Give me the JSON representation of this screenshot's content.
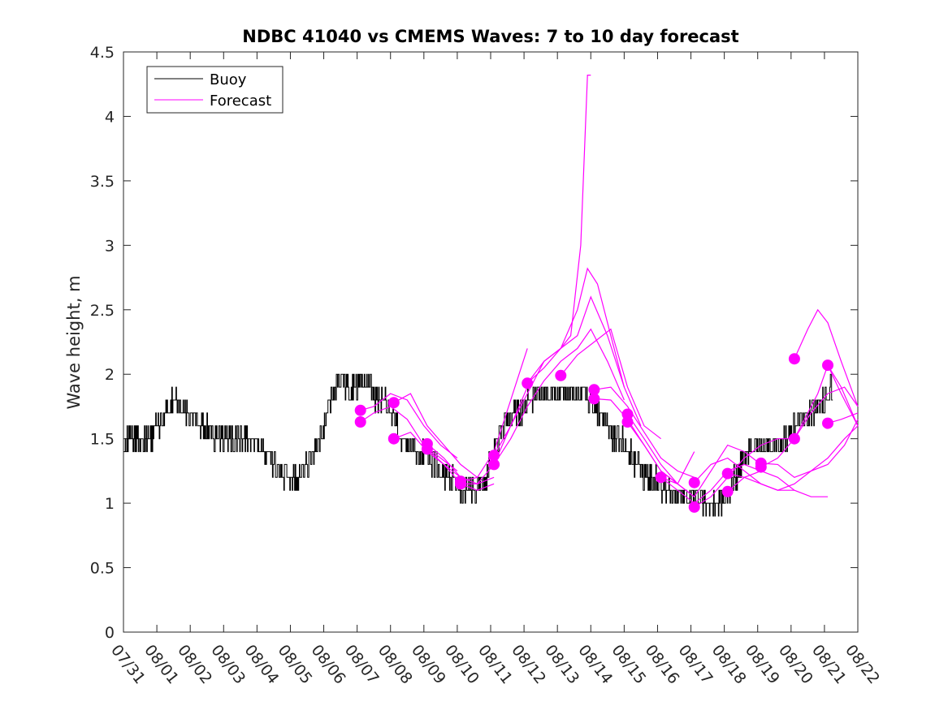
{
  "chart_data": {
    "type": "line",
    "title": "NDBC 41040 vs CMEMS Waves: 7 to 10 day forecast",
    "xlabel": "",
    "ylabel": "Wave height, m",
    "xlim": [
      0,
      22
    ],
    "ylim": [
      0,
      4.5
    ],
    "x_tick_labels": [
      "07/31",
      "08/01",
      "08/02",
      "08/03",
      "08/04",
      "08/05",
      "08/06",
      "08/07",
      "08/08",
      "08/09",
      "08/10",
      "08/11",
      "08/12",
      "08/13",
      "08/14",
      "08/15",
      "08/16",
      "08/17",
      "08/18",
      "08/19",
      "08/20",
      "08/21",
      "08/22"
    ],
    "y_tick_labels": [
      "0",
      "0.5",
      "1",
      "1.5",
      "2",
      "2.5",
      "3",
      "3.5",
      "4",
      "4.5"
    ],
    "legend": {
      "location": "top-left",
      "entries": [
        {
          "label": "Buoy",
          "color": "#000000"
        },
        {
          "label": "Forecast",
          "color": "#ff00ff"
        }
      ]
    },
    "series": [
      {
        "name": "Buoy",
        "color": "#000000",
        "x_unit": "days since 07/31",
        "x": [
          0,
          0.25,
          0.5,
          0.75,
          1,
          1.25,
          1.5,
          1.75,
          2,
          2.25,
          2.5,
          2.75,
          3,
          3.25,
          3.5,
          3.75,
          4,
          4.25,
          4.5,
          4.75,
          5,
          5.25,
          5.5,
          5.75,
          6,
          6.25,
          6.5,
          6.75,
          7,
          7.25,
          7.5,
          7.75,
          8,
          8.25,
          8.5,
          8.75,
          9,
          9.25,
          9.5,
          9.75,
          10,
          10.25,
          10.5,
          10.75,
          11,
          11.25,
          11.5,
          11.75,
          12,
          12.25,
          12.5,
          12.75,
          13,
          13.25,
          13.5,
          13.75,
          14,
          14.25,
          14.5,
          14.75,
          15,
          15.25,
          15.5,
          15.75,
          16,
          16.25,
          16.5,
          16.75,
          17,
          17.25,
          17.5,
          17.75,
          18,
          18.25,
          18.5,
          18.75,
          19,
          19.25,
          19.5,
          19.75,
          20,
          20.25,
          20.5,
          20.75,
          21,
          21.25
        ],
        "y": [
          1.5,
          1.5,
          1.5,
          1.5,
          1.6,
          1.7,
          1.8,
          1.75,
          1.7,
          1.6,
          1.6,
          1.5,
          1.5,
          1.5,
          1.5,
          1.5,
          1.45,
          1.4,
          1.3,
          1.2,
          1.15,
          1.2,
          1.3,
          1.45,
          1.6,
          1.85,
          1.95,
          1.9,
          1.9,
          1.95,
          1.85,
          1.8,
          1.7,
          1.55,
          1.45,
          1.4,
          1.35,
          1.3,
          1.25,
          1.2,
          1.15,
          1.1,
          1.1,
          1.15,
          1.3,
          1.5,
          1.65,
          1.7,
          1.75,
          1.8,
          1.85,
          1.85,
          1.85,
          1.85,
          1.85,
          1.85,
          1.8,
          1.7,
          1.6,
          1.5,
          1.45,
          1.35,
          1.25,
          1.2,
          1.15,
          1.1,
          1.05,
          1.05,
          1.05,
          1.0,
          1.0,
          1.0,
          1.05,
          1.15,
          1.3,
          1.4,
          1.45,
          1.45,
          1.45,
          1.5,
          1.55,
          1.65,
          1.7,
          1.75,
          1.8,
          1.9
        ]
      }
    ],
    "forecast_tracks": [
      {
        "x": [
          7.1,
          7.5,
          8.0,
          8.5,
          9.0,
          9.5,
          10.0
        ],
        "y": [
          1.72,
          1.75,
          1.85,
          1.8,
          1.6,
          1.45,
          1.35
        ]
      },
      {
        "x": [
          7.1,
          7.5,
          8.0,
          8.5,
          9.0,
          9.5,
          10.0
        ],
        "y": [
          1.63,
          1.7,
          1.75,
          1.65,
          1.45,
          1.35,
          1.25
        ]
      },
      {
        "x": [
          8.1,
          8.6,
          9.1,
          9.6,
          10.1,
          10.6
        ],
        "y": [
          1.78,
          1.85,
          1.6,
          1.45,
          1.3,
          1.2
        ]
      },
      {
        "x": [
          8.1,
          8.6,
          9.1,
          9.6,
          10.1
        ],
        "y": [
          1.5,
          1.55,
          1.4,
          1.3,
          1.2
        ]
      },
      {
        "x": [
          9.1,
          9.6,
          10.1,
          10.6,
          11.1
        ],
        "y": [
          1.46,
          1.35,
          1.2,
          1.15,
          1.2
        ]
      },
      {
        "x": [
          9.1,
          9.6,
          10.1,
          10.6,
          11.1
        ],
        "y": [
          1.42,
          1.3,
          1.15,
          1.1,
          1.15
        ]
      },
      {
        "x": [
          10.1,
          10.6,
          11.1,
          11.6,
          12.1
        ],
        "y": [
          1.17,
          1.2,
          1.4,
          1.8,
          2.2
        ]
      },
      {
        "x": [
          10.1,
          10.6,
          11.1,
          11.6,
          12.1
        ],
        "y": [
          1.15,
          1.15,
          1.3,
          1.6,
          1.9
        ]
      },
      {
        "x": [
          11.1,
          11.6,
          12.1,
          12.6,
          13.1,
          13.6,
          14.0,
          14.5,
          15.0
        ],
        "y": [
          1.37,
          1.6,
          1.85,
          2.1,
          2.2,
          2.3,
          2.6,
          2.3,
          1.9
        ]
      },
      {
        "x": [
          11.1,
          11.6,
          12.1,
          12.6,
          13.1,
          13.6,
          14.0,
          14.5,
          15.0
        ],
        "y": [
          1.3,
          1.5,
          1.75,
          1.95,
          2.1,
          2.2,
          2.35,
          2.1,
          1.8
        ]
      },
      {
        "x": [
          12.1,
          12.6,
          13.1,
          13.6,
          13.9,
          14.2,
          14.6,
          15.0,
          15.5
        ],
        "y": [
          1.93,
          2.1,
          2.2,
          2.5,
          2.82,
          2.7,
          2.3,
          1.9,
          1.6
        ]
      },
      {
        "x": [
          12.1,
          12.6,
          13.1,
          13.4,
          13.7,
          13.9,
          14.0
        ],
        "y": [
          1.93,
          2.05,
          2.2,
          2.3,
          3.0,
          4.32,
          4.32
        ]
      },
      {
        "x": [
          13.1,
          13.6,
          14.1,
          14.6,
          15.1,
          15.6,
          16.1
        ],
        "y": [
          1.99,
          2.15,
          2.25,
          2.35,
          1.9,
          1.6,
          1.5
        ]
      },
      {
        "x": [
          14.1,
          14.6,
          15.1,
          15.6,
          16.1,
          16.6,
          17.1
        ],
        "y": [
          1.88,
          1.9,
          1.75,
          1.55,
          1.35,
          1.25,
          1.2
        ]
      },
      {
        "x": [
          14.1,
          14.6,
          15.1,
          15.6,
          16.1,
          16.6,
          17.1
        ],
        "y": [
          1.81,
          1.8,
          1.65,
          1.45,
          1.25,
          1.15,
          1.05
        ]
      },
      {
        "x": [
          15.1,
          15.6,
          16.1,
          16.6,
          17.1
        ],
        "y": [
          1.69,
          1.5,
          1.3,
          1.15,
          1.05
        ]
      },
      {
        "x": [
          15.1,
          15.6,
          16.1,
          16.6,
          17.1
        ],
        "y": [
          1.63,
          1.45,
          1.25,
          1.15,
          1.4
        ]
      },
      {
        "x": [
          16.1,
          16.6,
          17.1,
          17.6,
          18.1,
          18.6,
          19.1
        ],
        "y": [
          1.2,
          1.15,
          1.05,
          1.25,
          1.45,
          1.4,
          1.3
        ]
      },
      {
        "x": [
          16.1,
          16.6,
          17.1,
          17.6,
          18.1,
          18.6,
          19.1
        ],
        "y": [
          1.2,
          1.1,
          1.0,
          1.1,
          1.25,
          1.3,
          1.25
        ]
      },
      {
        "x": [
          17.1,
          17.6,
          18.1,
          18.6,
          19.1,
          19.6,
          20.1
        ],
        "y": [
          1.16,
          1.3,
          1.35,
          1.25,
          1.15,
          1.1,
          1.1
        ]
      },
      {
        "x": [
          17.1,
          17.6,
          18.1,
          18.6,
          19.1,
          19.6,
          20.1
        ],
        "y": [
          0.97,
          1.05,
          1.2,
          1.35,
          1.45,
          1.5,
          1.5
        ]
      },
      {
        "x": [
          18.1,
          18.6,
          19.1,
          19.6,
          20.1,
          20.6,
          21.1,
          21.6,
          22.0
        ],
        "y": [
          1.23,
          1.2,
          1.15,
          1.1,
          1.15,
          1.25,
          1.35,
          1.5,
          1.6
        ]
      },
      {
        "x": [
          18.1,
          18.6,
          19.1,
          19.6,
          20.1,
          20.6,
          21.1
        ],
        "y": [
          1.09,
          1.2,
          1.25,
          1.2,
          1.1,
          1.05,
          1.05
        ]
      },
      {
        "x": [
          19.1,
          19.6,
          20.1,
          20.6,
          21.1,
          21.6,
          22.0
        ],
        "y": [
          1.31,
          1.3,
          1.2,
          1.25,
          1.3,
          1.45,
          1.65
        ]
      },
      {
        "x": [
          19.1,
          19.6,
          20.1,
          20.6,
          21.1,
          21.6,
          22.0
        ],
        "y": [
          1.28,
          1.35,
          1.5,
          1.7,
          1.85,
          1.9,
          1.75
        ]
      },
      {
        "x": [
          20.1,
          20.5,
          20.8,
          21.1,
          21.5,
          22.0
        ],
        "y": [
          2.12,
          2.35,
          2.5,
          2.4,
          2.1,
          1.75
        ]
      },
      {
        "x": [
          20.1,
          20.5,
          20.8,
          21.1,
          21.5,
          22.0
        ],
        "y": [
          1.5,
          1.7,
          1.85,
          2.07,
          1.85,
          1.6
        ]
      },
      {
        "x": [
          21.1,
          21.5,
          22.0
        ],
        "y": [
          1.62,
          1.65,
          1.7
        ]
      },
      {
        "x": [
          21.1,
          21.5,
          22.0
        ],
        "y": [
          2.07,
          1.9,
          1.6
        ]
      }
    ],
    "forecast_markers": {
      "x": [
        7.1,
        7.1,
        8.1,
        8.1,
        9.1,
        9.1,
        10.1,
        10.1,
        11.1,
        11.1,
        12.1,
        13.1,
        14.1,
        14.1,
        15.1,
        15.1,
        16.1,
        17.1,
        17.1,
        18.1,
        18.1,
        19.1,
        19.1,
        20.1,
        20.1,
        21.1,
        21.1
      ],
      "y": [
        1.72,
        1.63,
        1.78,
        1.5,
        1.46,
        1.42,
        1.17,
        1.15,
        1.37,
        1.3,
        1.93,
        1.99,
        1.88,
        1.81,
        1.69,
        1.63,
        1.2,
        1.16,
        0.97,
        1.23,
        1.09,
        1.31,
        1.28,
        2.12,
        1.5,
        2.07,
        1.62
      ]
    }
  }
}
